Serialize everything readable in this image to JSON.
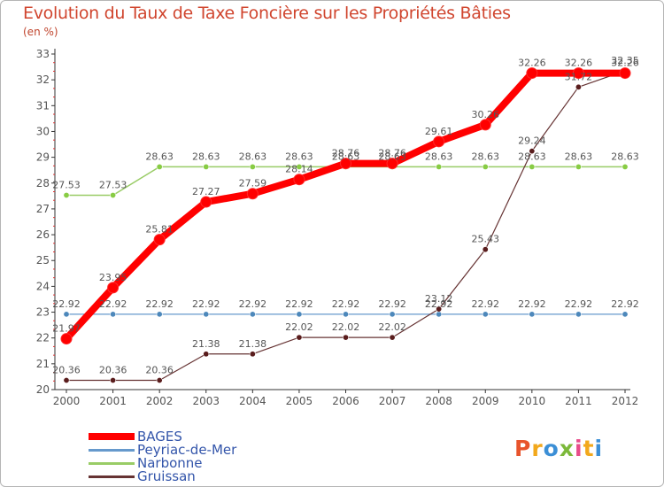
{
  "title": "Evolution du Taux de Taxe Foncière sur les Propriétés Bâties",
  "subtitle": "(en %)",
  "logo": {
    "text": "Proxiti",
    "colors": [
      "#e8542c",
      "#f2a81c",
      "#3b8fd6",
      "#7cb93a",
      "#e84c8a",
      "#f2a81c",
      "#3b8fd6"
    ]
  },
  "chart_data": {
    "type": "line",
    "title": "Evolution du Taux de Taxe Foncière sur les Propriétés Bâties",
    "ylabel": "(en %)",
    "xlabel": "",
    "x": [
      "2000",
      "2001",
      "2002",
      "2003",
      "2004",
      "2005",
      "2006",
      "2007",
      "2008",
      "2009",
      "2010",
      "2011",
      "2012"
    ],
    "yticks": [
      "20",
      "21",
      "22",
      "23",
      "24",
      "25",
      "26",
      "27",
      "28",
      "29",
      "30",
      "31",
      "32",
      "33"
    ],
    "ylim": [
      20,
      33
    ],
    "grid": false,
    "legend_position": "bottom-left",
    "series": [
      {
        "name": "BAGES",
        "color": "#ff0000",
        "values": [
          21.97,
          23.95,
          25.81,
          27.27,
          27.59,
          28.14,
          28.76,
          28.76,
          29.61,
          30.26,
          32.26,
          32.26,
          32.26
        ],
        "labels": [
          "21.97",
          "23.95",
          "25.81",
          "27.27",
          "27.59",
          "28.14",
          "28.76",
          "28.76",
          "29.61",
          "30.26",
          "32.26",
          "32.26",
          "32.26"
        ]
      },
      {
        "name": "Peyriac-de-Mer",
        "color": "#6699cc",
        "values": [
          22.92,
          22.92,
          22.92,
          22.92,
          22.92,
          22.92,
          22.92,
          22.92,
          22.92,
          22.92,
          22.92,
          22.92,
          22.92
        ],
        "labels": [
          "22.92",
          "22.92",
          "22.92",
          "22.92",
          "22.92",
          "22.92",
          "22.92",
          "22.92",
          "22.92",
          "22.92",
          "22.92",
          "22.92",
          "22.92"
        ]
      },
      {
        "name": "Narbonne",
        "color": "#99cc66",
        "values": [
          27.53,
          27.53,
          28.63,
          28.63,
          28.63,
          28.63,
          28.63,
          28.63,
          28.63,
          28.63,
          28.63,
          28.63,
          28.63
        ],
        "labels": [
          "27.53",
          "27.53",
          "28.63",
          "28.63",
          "28.63",
          "28.63",
          "28.63",
          "28.63",
          "28.63",
          "28.63",
          "28.63",
          "28.63",
          "28.63"
        ]
      },
      {
        "name": "Gruissan",
        "color": "#663333",
        "values": [
          20.36,
          20.36,
          20.36,
          21.38,
          21.38,
          22.02,
          22.02,
          22.02,
          23.12,
          25.43,
          29.24,
          31.72,
          32.35
        ],
        "labels": [
          "20.36",
          "20.36",
          "20.36",
          "21.38",
          "21.38",
          "22.02",
          "22.02",
          "22.02",
          "23.12",
          "25.43",
          "29.24",
          "31.72",
          "32.35"
        ]
      }
    ]
  }
}
